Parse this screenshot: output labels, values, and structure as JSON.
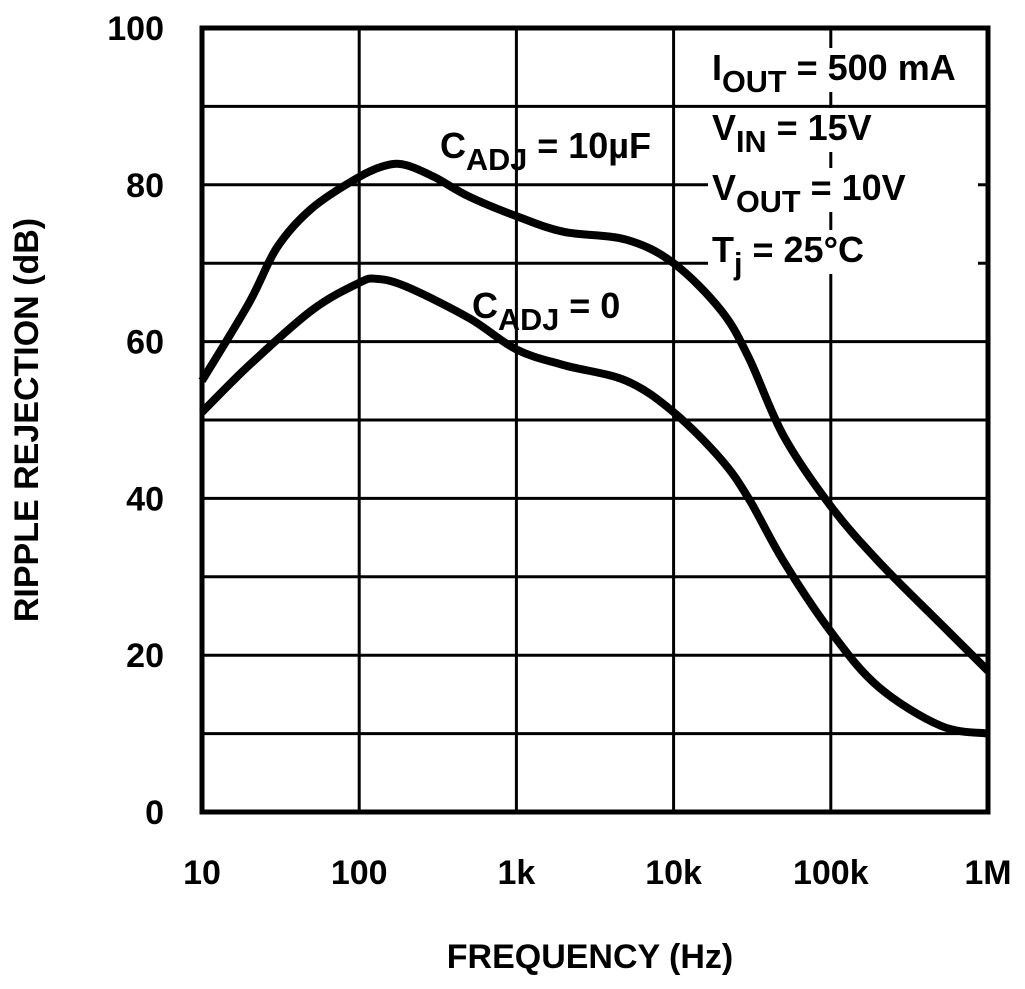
{
  "chart_data": {
    "type": "line",
    "x_axis_label": "FREQUENCY (Hz)",
    "y_axis_label": "RIPPLE REJECTION (dB)",
    "log_x": true,
    "grid": true,
    "xlim": [
      10,
      1000000
    ],
    "xticks": [
      10,
      100,
      {
        "value": 1000,
        "label": "1k"
      },
      {
        "value": 10000,
        "label": "10k"
      },
      {
        "value": 100000,
        "label": "100k"
      },
      {
        "value": 1000000,
        "label": "1M"
      }
    ],
    "ylim": [
      0,
      100
    ],
    "yticks": [
      0,
      20,
      40,
      60,
      80,
      100
    ],
    "yminor_ticks": [
      10,
      30,
      50,
      70,
      90
    ],
    "series": [
      {
        "label": {
          "main": "C",
          "sub": "ADJ",
          "rest": " = 10µF"
        },
        "color": "#000000",
        "x": [
          10,
          20,
          30,
          50,
          100,
          150,
          200,
          300,
          500,
          1000,
          2000,
          5000,
          10000,
          20000,
          30000,
          50000,
          100000,
          200000,
          500000,
          1000000
        ],
        "values": [
          55,
          65,
          72,
          77,
          81,
          82.5,
          82.5,
          81,
          78.5,
          76,
          74,
          73,
          70,
          64,
          58,
          48,
          39,
          32,
          24,
          18
        ]
      },
      {
        "label": {
          "main": "C",
          "sub": "ADJ",
          "rest": " = 0"
        },
        "color": "#000000",
        "x": [
          10,
          20,
          50,
          100,
          130,
          200,
          500,
          1000,
          2000,
          5000,
          10000,
          20000,
          30000,
          50000,
          100000,
          200000,
          500000,
          1000000
        ],
        "values": [
          51,
          57,
          64,
          67.5,
          68,
          67,
          63,
          59,
          57,
          55,
          51,
          45,
          40,
          32,
          23,
          16,
          11,
          10
        ]
      }
    ],
    "annotations": [
      {
        "main": "I",
        "sub": "OUT",
        "rest": " = 500 mA"
      },
      {
        "main": "V",
        "sub": "IN",
        "rest": " = 15V"
      },
      {
        "main": "V",
        "sub": "OUT",
        "rest": " = 10V"
      },
      {
        "main": "T",
        "sub": "j",
        "rest": " = 25°C"
      }
    ]
  }
}
